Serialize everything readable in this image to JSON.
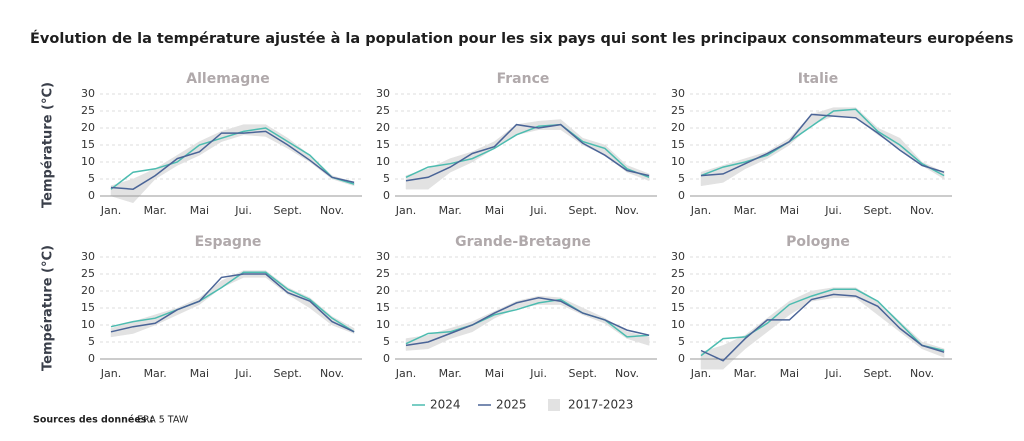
{
  "title": "Évolution de la température ajustée à la population pour les six pays qui sont les principaux consommateurs européens",
  "source": {
    "label": "Sources des données :",
    "text": "ERA 5 TAW"
  },
  "chart_data": [
    {
      "type": "line",
      "title": "Allemagne",
      "ylabel": "Température (°C)",
      "categories": [
        "Jan.",
        null,
        "Mar.",
        null,
        "Mai",
        null,
        "Jui.",
        null,
        "Sept.",
        null,
        "Nov.",
        null
      ],
      "ylim": [
        0,
        30
      ],
      "yticks": [
        0,
        5,
        10,
        15,
        20,
        25,
        30
      ],
      "grid": true,
      "series": [
        {
          "name": "2024",
          "color": "#4cbcb0",
          "values": [
            2,
            7,
            8,
            10,
            15,
            17,
            19,
            20,
            16,
            12,
            5.5,
            3.5
          ]
        },
        {
          "name": "2025",
          "color": "#4a6497",
          "values": [
            2.5,
            2,
            6,
            11,
            13,
            18.5,
            18.5,
            19,
            15,
            10.5,
            5.5,
            4
          ]
        },
        {
          "name": "2017-2023",
          "color": "#e2e2e2",
          "low": [
            0,
            -2,
            5,
            9,
            12,
            16,
            18,
            17.5,
            14,
            10,
            5,
            3
          ],
          "high": [
            3,
            5,
            8,
            12,
            16,
            19,
            21,
            21,
            17,
            12,
            6,
            4
          ]
        }
      ]
    },
    {
      "type": "line",
      "title": "France",
      "categories": [
        "Jan.",
        null,
        "Mar.",
        null,
        "Mai",
        null,
        "Jui.",
        null,
        "Sept.",
        null,
        "Nov.",
        null
      ],
      "ylim": [
        0,
        30
      ],
      "yticks": [
        0,
        5,
        10,
        15,
        20,
        25,
        30
      ],
      "grid": true,
      "series": [
        {
          "name": "2024",
          "color": "#4cbcb0",
          "values": [
            5.5,
            8.5,
            9.5,
            11,
            14,
            18,
            20.5,
            21,
            16,
            14,
            8,
            5.5
          ]
        },
        {
          "name": "2025",
          "color": "#4a6497",
          "values": [
            4.5,
            5.5,
            8.5,
            12.5,
            14.5,
            21,
            20,
            21,
            15.5,
            12,
            7.5,
            6
          ]
        },
        {
          "name": "2017-2023",
          "color": "#e2e2e2",
          "low": [
            2,
            2,
            7,
            10,
            14,
            18,
            19.5,
            19.5,
            15,
            12,
            7,
            4.5
          ],
          "high": [
            6,
            8,
            11,
            13,
            16,
            21,
            22,
            22.5,
            17,
            15,
            9,
            6.5
          ]
        }
      ]
    },
    {
      "type": "line",
      "title": "Italie",
      "categories": [
        "Jan.",
        null,
        "Mar.",
        null,
        "Mai",
        null,
        "Jui.",
        null,
        "Sept.",
        null,
        "Nov.",
        null
      ],
      "ylim": [
        0,
        30
      ],
      "yticks": [
        0,
        5,
        10,
        15,
        20,
        25,
        30
      ],
      "grid": true,
      "series": [
        {
          "name": "2024",
          "color": "#4cbcb0",
          "values": [
            6,
            8.5,
            10,
            12,
            16,
            20.5,
            25,
            25.5,
            19,
            15,
            9.5,
            6
          ]
        },
        {
          "name": "2025",
          "color": "#4a6497",
          "values": [
            6,
            6.5,
            9.5,
            12.5,
            16,
            24,
            23.5,
            23,
            18.5,
            13.5,
            9,
            7
          ]
        },
        {
          "name": "2017-2023",
          "color": "#e2e2e2",
          "low": [
            3,
            4,
            8,
            11,
            15,
            21,
            23.5,
            23,
            18,
            14,
            9,
            5
          ],
          "high": [
            7,
            9,
            11,
            13,
            17,
            24,
            26,
            26,
            20,
            17,
            10,
            7
          ]
        }
      ]
    },
    {
      "type": "line",
      "title": "Espagne",
      "ylabel": "Température (°C)",
      "categories": [
        "Jan.",
        null,
        "Mar.",
        null,
        "Mai",
        null,
        "Jui.",
        null,
        "Sept.",
        null,
        "Nov.",
        null
      ],
      "ylim": [
        0,
        30
      ],
      "yticks": [
        0,
        5,
        10,
        15,
        20,
        25,
        30
      ],
      "grid": true,
      "series": [
        {
          "name": "2024",
          "color": "#4cbcb0",
          "values": [
            9.5,
            11,
            12,
            14.5,
            17,
            21,
            25.5,
            25.5,
            20.5,
            17.5,
            12,
            8
          ]
        },
        {
          "name": "2025",
          "color": "#4a6497",
          "values": [
            8,
            9.5,
            10.5,
            14.5,
            17,
            24,
            25,
            25,
            19.5,
            17,
            11,
            8
          ]
        },
        {
          "name": "2017-2023",
          "color": "#e2e2e2",
          "low": [
            6.5,
            7.5,
            10,
            13,
            16,
            21,
            24,
            24,
            19,
            15,
            10,
            7.5
          ],
          "high": [
            9,
            11,
            13,
            15,
            18,
            23,
            26,
            26,
            21,
            18,
            12.5,
            9
          ]
        }
      ]
    },
    {
      "type": "line",
      "title": "Grande-Bretagne",
      "categories": [
        "Jan.",
        null,
        "Mar.",
        null,
        "Mai",
        null,
        "Jui.",
        null,
        "Sept.",
        null,
        "Nov.",
        null
      ],
      "ylim": [
        0,
        30
      ],
      "yticks": [
        0,
        5,
        10,
        15,
        20,
        25,
        30
      ],
      "grid": true,
      "series": [
        {
          "name": "2024",
          "color": "#4cbcb0",
          "values": [
            4.5,
            7.5,
            8,
            10,
            13,
            14.5,
            16.5,
            17.5,
            13.5,
            11.5,
            6.5,
            7
          ]
        },
        {
          "name": "2025",
          "color": "#4a6497",
          "values": [
            4,
            5,
            7.5,
            10,
            13.5,
            16.5,
            18,
            17,
            13.5,
            11.5,
            8.5,
            7
          ]
        },
        {
          "name": "2017-2023",
          "color": "#e2e2e2",
          "low": [
            2.5,
            3,
            6,
            8,
            12,
            15,
            16,
            16,
            13,
            10.5,
            6,
            4
          ],
          "high": [
            6,
            7,
            9,
            11,
            14,
            17,
            18.5,
            18,
            15,
            12,
            8,
            6.5
          ]
        }
      ]
    },
    {
      "type": "line",
      "title": "Pologne",
      "categories": [
        "Jan.",
        null,
        "Mar.",
        null,
        "Mai",
        null,
        "Jui.",
        null,
        "Sept.",
        null,
        "Nov.",
        null
      ],
      "ylim": [
        0,
        30
      ],
      "yticks": [
        0,
        5,
        10,
        15,
        20,
        25,
        30
      ],
      "grid": true,
      "series": [
        {
          "name": "2024",
          "color": "#4cbcb0",
          "values": [
            1,
            6,
            6.5,
            10.5,
            16,
            18.5,
            20.5,
            20.5,
            17,
            10.5,
            4,
            2.5
          ]
        },
        {
          "name": "2025",
          "color": "#4a6497",
          "values": [
            2.5,
            -0.5,
            6,
            11.5,
            11.5,
            17.5,
            19,
            18.5,
            15.5,
            9,
            4,
            2
          ]
        },
        {
          "name": "2017-2023",
          "color": "#e2e2e2",
          "low": [
            -3,
            -3,
            3,
            8,
            13,
            17,
            18,
            18,
            13,
            8,
            3,
            0.5
          ],
          "high": [
            2,
            4,
            7,
            12,
            17,
            20,
            21,
            21,
            17,
            11,
            5,
            3
          ]
        }
      ]
    }
  ]
}
